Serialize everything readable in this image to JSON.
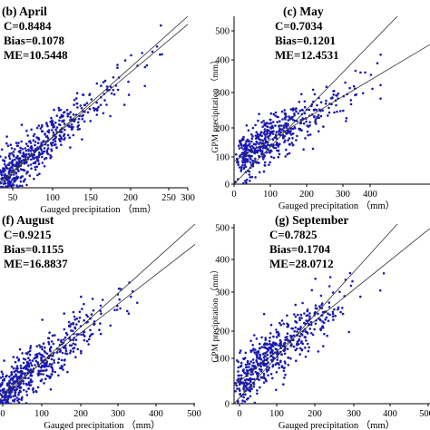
{
  "chart_data": [
    {
      "type": "scatter",
      "title": "(b) April",
      "xlabel": "Gauged precipitation （mm）",
      "ylabel": "",
      "xlim": [
        0,
        300
      ],
      "ylim": [
        0,
        300
      ],
      "xticks": [
        "50",
        "100",
        "150",
        "200",
        "250",
        "300"
      ],
      "yticks": [],
      "stats": [
        "C=0.8484",
        "Bias=0.1078",
        "ME=10.5448"
      ],
      "fit_line": {
        "slope": 0.94,
        "intercept": 4
      }
    },
    {
      "type": "scatter",
      "title": "(c) May",
      "xlabel": "Gauged precipitation （mm）",
      "ylabel": "GPM precipitation （mm）",
      "xlim": [
        0,
        600
      ],
      "ylim": [
        0,
        500
      ],
      "xticks": [
        "0",
        "100",
        "200",
        "300",
        "400"
      ],
      "yticks": [
        "0",
        "100",
        "200",
        "300",
        "400",
        "500"
      ],
      "stats": [
        "C=0.7034",
        "Bias=0.1201",
        "ME=12.4531"
      ],
      "fit_line": {
        "slope": 0.58,
        "intercept": 68
      }
    },
    {
      "type": "scatter",
      "title": "(f) August",
      "xlabel": "Gauged precipitation （mm）",
      "ylabel": "",
      "xlim": [
        0,
        600
      ],
      "ylim": [
        0,
        600
      ],
      "xticks": [
        "0",
        "100",
        "200",
        "300",
        "400",
        "500"
      ],
      "yticks": [],
      "stats": [
        "C=0.9215",
        "Bias=0.1155",
        "ME=16.8837"
      ],
      "fit_line": {
        "slope": 0.86,
        "intercept": 16
      }
    },
    {
      "type": "scatter",
      "title": "(g) September",
      "xlabel": "Gauged precipitation （mm）",
      "ylabel": "GPM precipitation （mm）",
      "xlim": [
        0,
        600
      ],
      "ylim": [
        0,
        500
      ],
      "xticks": [
        "0",
        "100",
        "200",
        "300",
        "400",
        "500"
      ],
      "yticks": [
        "0",
        "100",
        "200",
        "300",
        "400",
        "500"
      ],
      "stats": [
        "C=0.7825",
        "Bias=0.1704",
        "ME=28.0712"
      ],
      "fit_line": {
        "slope": 0.73,
        "intercept": 50
      }
    }
  ],
  "colors": {
    "points": "#1b1bb0",
    "lines": "#333333",
    "axis": "#000000"
  }
}
